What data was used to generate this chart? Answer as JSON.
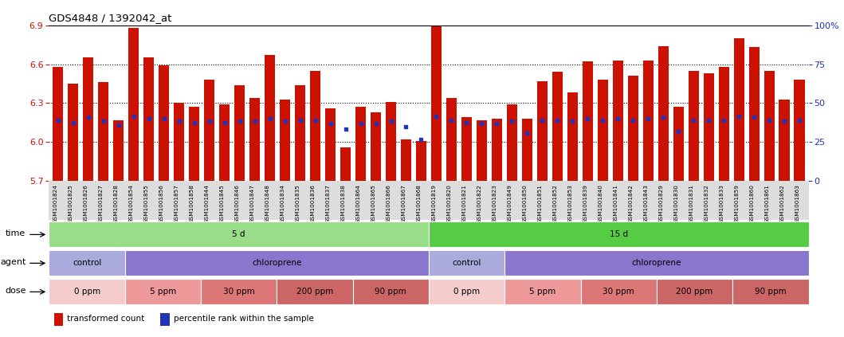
{
  "title": "GDS4848 / 1392042_at",
  "samples": [
    "GSM1001824",
    "GSM1001825",
    "GSM1001826",
    "GSM1001827",
    "GSM1001828",
    "GSM1001854",
    "GSM1001855",
    "GSM1001856",
    "GSM1001857",
    "GSM1001858",
    "GSM1001844",
    "GSM1001845",
    "GSM1001846",
    "GSM1001847",
    "GSM1001848",
    "GSM1001834",
    "GSM1001835",
    "GSM1001836",
    "GSM1001837",
    "GSM1001838",
    "GSM1001864",
    "GSM1001865",
    "GSM1001866",
    "GSM1001867",
    "GSM1001868",
    "GSM1001819",
    "GSM1001820",
    "GSM1001821",
    "GSM1001822",
    "GSM1001823",
    "GSM1001849",
    "GSM1001850",
    "GSM1001851",
    "GSM1001852",
    "GSM1001853",
    "GSM1001839",
    "GSM1001840",
    "GSM1001841",
    "GSM1001842",
    "GSM1001843",
    "GSM1001829",
    "GSM1001830",
    "GSM1001831",
    "GSM1001832",
    "GSM1001833",
    "GSM1001859",
    "GSM1001860",
    "GSM1001861",
    "GSM1001862",
    "GSM1001863"
  ],
  "red_values": [
    6.58,
    6.45,
    6.65,
    6.46,
    6.17,
    6.88,
    6.65,
    6.59,
    6.3,
    6.27,
    6.48,
    6.29,
    6.44,
    6.34,
    6.67,
    6.33,
    6.44,
    6.55,
    6.26,
    5.96,
    6.27,
    6.23,
    6.31,
    6.02,
    6.01,
    6.9,
    6.34,
    6.19,
    6.17,
    6.18,
    6.29,
    6.18,
    6.47,
    6.54,
    6.38,
    6.62,
    6.48,
    6.63,
    6.51,
    6.63,
    6.74,
    6.27,
    6.55,
    6.53,
    6.58,
    6.8,
    6.73,
    6.55,
    6.33,
    6.48
  ],
  "blue_values": [
    6.17,
    6.15,
    6.19,
    6.16,
    6.13,
    6.2,
    6.18,
    6.18,
    6.16,
    6.15,
    6.16,
    6.15,
    6.16,
    6.16,
    6.18,
    6.16,
    6.17,
    6.17,
    6.14,
    6.1,
    6.14,
    6.14,
    6.16,
    6.12,
    6.02,
    6.2,
    6.17,
    6.15,
    6.14,
    6.14,
    6.16,
    6.07,
    6.17,
    6.17,
    6.16,
    6.18,
    6.17,
    6.18,
    6.17,
    6.18,
    6.19,
    6.08,
    6.17,
    6.17,
    6.17,
    6.2,
    6.19,
    6.17,
    6.16,
    6.17
  ],
  "ymin": 5.7,
  "ymax": 6.9,
  "yticks_left": [
    5.7,
    6.0,
    6.3,
    6.6,
    6.9
  ],
  "hlines": [
    6.0,
    6.3,
    6.6
  ],
  "bar_color": "#cc1100",
  "blue_color": "#2233bb",
  "time_groups": [
    {
      "label": "5 d",
      "start": 0,
      "end": 25,
      "color": "#99dd88"
    },
    {
      "label": "15 d",
      "start": 25,
      "end": 50,
      "color": "#55cc44"
    }
  ],
  "agent_groups": [
    {
      "label": "control",
      "start": 0,
      "end": 5,
      "color": "#aaaadd"
    },
    {
      "label": "chloroprene",
      "start": 5,
      "end": 25,
      "color": "#8877cc"
    },
    {
      "label": "control",
      "start": 25,
      "end": 30,
      "color": "#aaaadd"
    },
    {
      "label": "chloroprene",
      "start": 30,
      "end": 50,
      "color": "#8877cc"
    }
  ],
  "dose_groups": [
    {
      "label": "0 ppm",
      "start": 0,
      "end": 5,
      "color": "#f5cccc"
    },
    {
      "label": "5 ppm",
      "start": 5,
      "end": 10,
      "color": "#ee9999"
    },
    {
      "label": "30 ppm",
      "start": 10,
      "end": 15,
      "color": "#dd7777"
    },
    {
      "label": "200 ppm",
      "start": 15,
      "end": 20,
      "color": "#cc6666"
    },
    {
      "label": "90 ppm",
      "start": 20,
      "end": 25,
      "color": "#cc6666"
    },
    {
      "label": "0 ppm",
      "start": 25,
      "end": 30,
      "color": "#f5cccc"
    },
    {
      "label": "5 ppm",
      "start": 30,
      "end": 35,
      "color": "#ee9999"
    },
    {
      "label": "30 ppm",
      "start": 35,
      "end": 40,
      "color": "#dd7777"
    },
    {
      "label": "200 ppm",
      "start": 40,
      "end": 45,
      "color": "#cc6666"
    },
    {
      "label": "90 ppm",
      "start": 45,
      "end": 50,
      "color": "#cc6666"
    }
  ],
  "legend_items": [
    {
      "label": "transformed count",
      "color": "#cc1100"
    },
    {
      "label": "percentile rank within the sample",
      "color": "#2233bb"
    }
  ],
  "xlabel_bg": "#dddddd",
  "chart_bg": "#ffffff"
}
